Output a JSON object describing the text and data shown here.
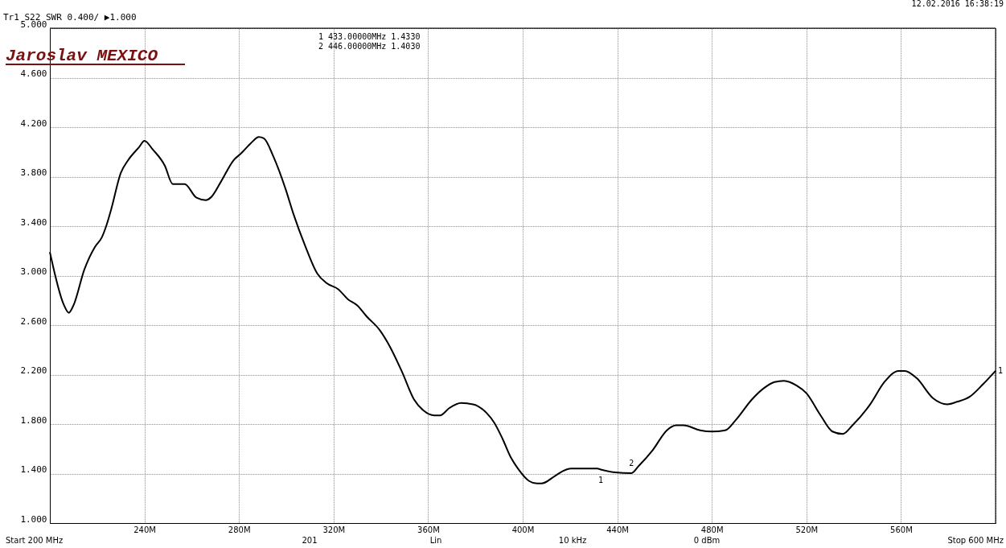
{
  "chart_data": {
    "type": "line",
    "title": "Tr1 S22 SWR 0.400/ ▶1.000",
    "x": [
      200,
      206,
      208,
      210,
      214.6,
      219,
      222,
      224,
      226,
      230,
      233,
      237.8,
      240,
      243.5,
      248.6,
      252,
      257,
      262,
      266,
      268,
      272.4,
      277.6,
      281,
      285,
      288.4,
      290.5,
      294.6,
      299.7,
      303,
      308,
      313,
      317,
      322,
      326,
      330,
      334,
      339.5,
      344,
      349,
      354,
      358,
      362.6,
      365,
      369,
      374,
      379,
      384.7,
      388,
      391.5,
      395,
      398,
      402.7,
      406,
      408,
      413.6,
      417,
      420.4,
      425.5,
      431.6,
      433,
      439,
      446,
      449,
      455,
      461,
      465,
      468,
      475,
      480,
      485.7,
      490,
      497,
      502,
      506.5,
      510.5,
      516,
      520,
      526,
      531,
      535.4,
      539.5,
      547,
      553,
      559,
      561.6,
      566.7,
      573.5,
      579.6,
      583.7,
      589,
      594.6,
      600
    ],
    "series": [
      {
        "color": "#000000",
        "values": [
          3.19,
          2.76,
          2.7,
          2.76,
          3.05,
          3.23,
          3.31,
          3.41,
          3.54,
          3.83,
          3.93,
          4.04,
          4.09,
          4.02,
          3.89,
          3.74,
          3.74,
          3.63,
          3.61,
          3.63,
          3.76,
          3.93,
          3.99,
          4.07,
          4.12,
          4.11,
          3.96,
          3.7,
          3.5,
          3.24,
          3.02,
          2.94,
          2.89,
          2.81,
          2.76,
          2.67,
          2.56,
          2.42,
          2.22,
          2.0,
          1.91,
          1.87,
          1.87,
          1.93,
          1.97,
          1.96,
          1.89,
          1.81,
          1.68,
          1.53,
          1.44,
          1.34,
          1.32,
          1.32,
          1.38,
          1.42,
          1.44,
          1.44,
          1.44,
          1.433,
          1.41,
          1.403,
          1.46,
          1.59,
          1.75,
          1.79,
          1.79,
          1.75,
          1.74,
          1.75,
          1.83,
          2.0,
          2.09,
          2.14,
          2.15,
          2.11,
          2.05,
          1.87,
          1.74,
          1.72,
          1.79,
          1.96,
          2.14,
          2.23,
          2.23,
          2.17,
          2.01,
          1.96,
          1.98,
          2.02,
          2.12,
          2.23
        ]
      }
    ],
    "xlim": [
      200,
      600
    ],
    "xticks": [
      {
        "value": 200,
        "label": null
      },
      {
        "value": 240,
        "label": "240M"
      },
      {
        "value": 280,
        "label": "280M"
      },
      {
        "value": 320,
        "label": "320M"
      },
      {
        "value": 360,
        "label": "360M"
      },
      {
        "value": 400,
        "label": "400M"
      },
      {
        "value": 440,
        "label": "440M"
      },
      {
        "value": 480,
        "label": "480M"
      },
      {
        "value": 520,
        "label": "520M"
      },
      {
        "value": 560,
        "label": "560M"
      },
      {
        "value": 600,
        "label": null
      }
    ],
    "ylim": [
      1,
      5
    ],
    "yticks": [
      {
        "value": 1,
        "label": "1.000"
      },
      {
        "value": 1.4,
        "label": "1.400"
      },
      {
        "value": 1.8,
        "label": "1.800"
      },
      {
        "value": 2.2,
        "label": "2.200"
      },
      {
        "value": 2.6,
        "label": "2.600"
      },
      {
        "value": 3,
        "label": "3.000"
      },
      {
        "value": 3.4,
        "label": "3.400"
      },
      {
        "value": 3.8,
        "label": "3.800"
      },
      {
        "value": 4.2,
        "label": "4.200"
      },
      {
        "value": 4.6,
        "label": "4.600"
      },
      {
        "value": 5,
        "label": "5.000"
      }
    ],
    "grid": true,
    "annotations": [
      "12.02.2016 16:38:19",
      "Jaroslav MEXICO",
      "1  433.00000MHz  1.4330",
      "2  446.00000MHz  1.4030",
      "Start 200 MHz",
      "201",
      "Lin",
      "10 kHz",
      "0 dBm",
      "Stop 600 MHz",
      {
        "text": "1",
        "x": 433,
        "y": 1.433
      },
      {
        "text": "2",
        "x": 446,
        "y": 1.403
      },
      {
        "text": "1",
        "x": 600,
        "y": 2.23
      }
    ]
  }
}
